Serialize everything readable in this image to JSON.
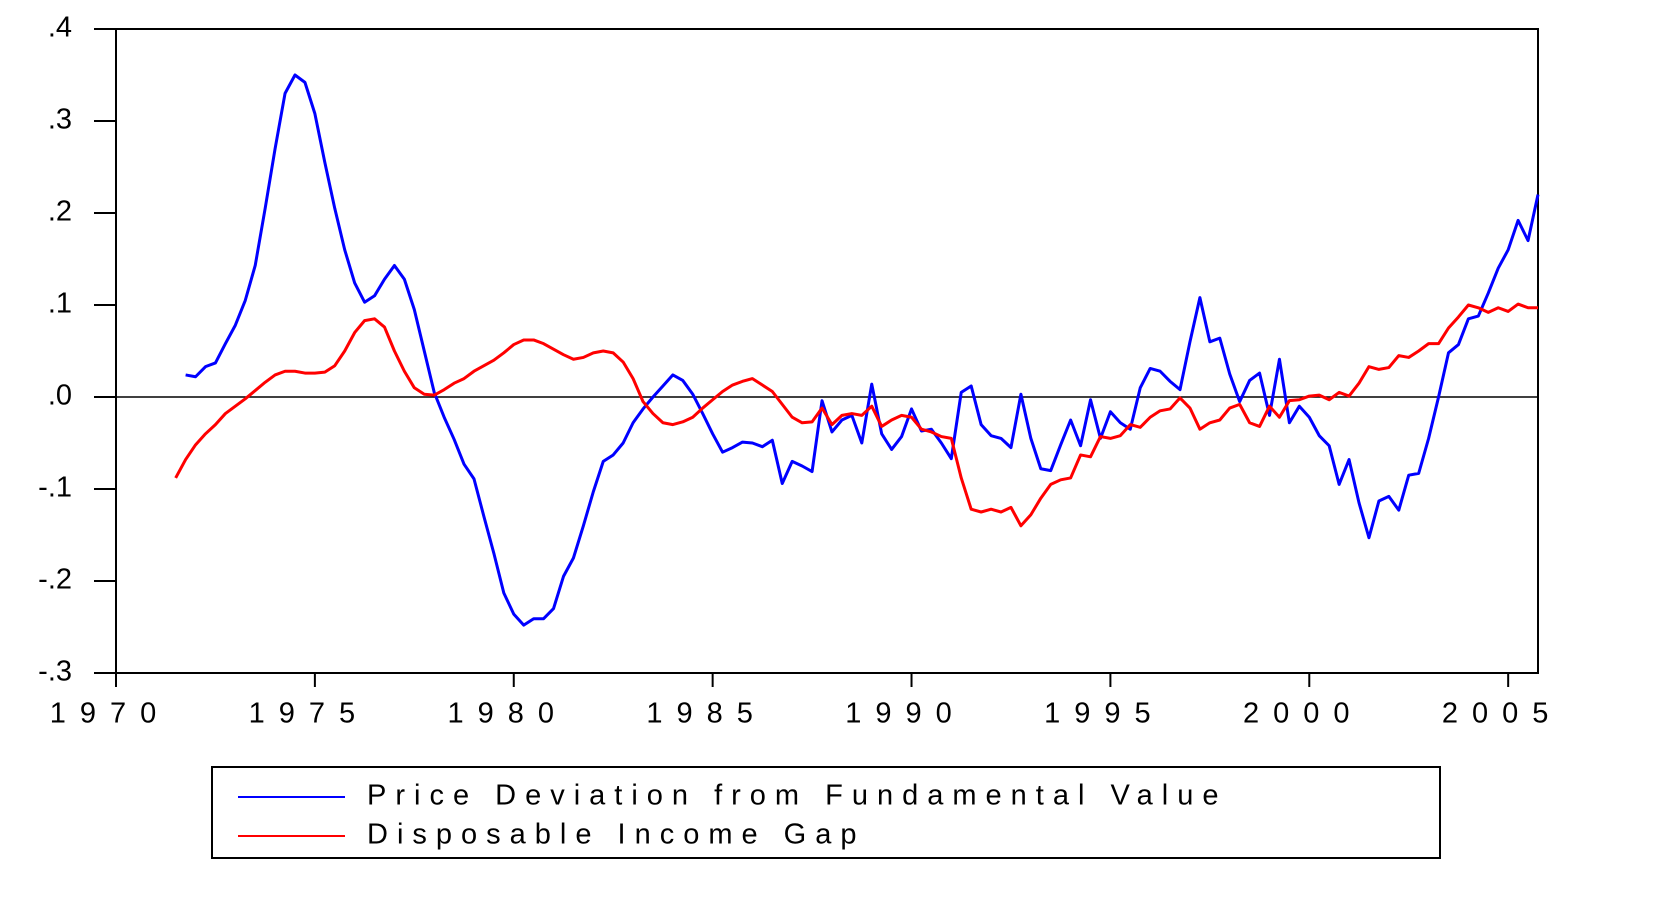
{
  "chart_data": {
    "type": "line",
    "x": [
      1971.5,
      1971.75,
      1972,
      1972.25,
      1972.5,
      1972.75,
      1973,
      1973.25,
      1973.5,
      1973.75,
      1974,
      1974.25,
      1974.5,
      1974.75,
      1975,
      1975.25,
      1975.5,
      1975.75,
      1976,
      1976.25,
      1976.5,
      1976.75,
      1977,
      1977.25,
      1977.5,
      1977.75,
      1978,
      1978.25,
      1978.5,
      1978.75,
      1979,
      1979.25,
      1979.5,
      1979.75,
      1980,
      1980.25,
      1980.5,
      1980.75,
      1981,
      1981.25,
      1981.5,
      1981.75,
      1982,
      1982.25,
      1982.5,
      1982.75,
      1983,
      1983.25,
      1983.5,
      1983.75,
      1984,
      1984.25,
      1984.5,
      1984.75,
      1985,
      1985.25,
      1985.5,
      1985.75,
      1986,
      1986.25,
      1986.5,
      1986.75,
      1987,
      1987.25,
      1987.5,
      1987.75,
      1988,
      1988.25,
      1988.5,
      1988.75,
      1989,
      1989.25,
      1989.5,
      1989.75,
      1990,
      1990.25,
      1990.5,
      1990.75,
      1991,
      1991.25,
      1991.5,
      1991.75,
      1992,
      1992.25,
      1992.5,
      1992.75,
      1993,
      1993.25,
      1993.5,
      1993.75,
      1994,
      1994.25,
      1994.5,
      1994.75,
      1995,
      1995.25,
      1995.5,
      1995.75,
      1996,
      1996.25,
      1996.5,
      1996.75,
      1997,
      1997.25,
      1997.5,
      1997.75,
      1998,
      1998.25,
      1998.5,
      1998.75,
      1999,
      1999.25,
      1999.5,
      1999.75,
      2000,
      2000.25,
      2000.5,
      2000.75,
      2001,
      2001.25,
      2001.5,
      2001.75,
      2002,
      2002.25,
      2002.5,
      2002.75,
      2003,
      2003.25,
      2003.5,
      2003.75,
      2004,
      2004.25,
      2004.5,
      2004.75,
      2005,
      2005.25,
      2005.5,
      2005.75
    ],
    "series": [
      {
        "name": "Price Deviation from Fundamental Value",
        "color": "#0000ff",
        "values": [
          null,
          0.024,
          0.022,
          0.033,
          0.037,
          0.058,
          0.078,
          0.105,
          0.143,
          0.205,
          0.27,
          0.33,
          0.35,
          0.342,
          0.308,
          0.255,
          0.205,
          0.16,
          0.124,
          0.103,
          0.11,
          0.128,
          0.143,
          0.128,
          0.095,
          0.05,
          0.005,
          -0.022,
          -0.046,
          -0.073,
          -0.089,
          -0.13,
          -0.17,
          -0.213,
          -0.236,
          -0.248,
          -0.241,
          -0.241,
          -0.23,
          -0.195,
          -0.175,
          -0.14,
          -0.103,
          -0.07,
          -0.063,
          -0.05,
          -0.028,
          -0.013,
          0,
          0.012,
          0.024,
          0.018,
          0.003,
          -0.018,
          -0.04,
          -0.06,
          -0.055,
          -0.049,
          -0.05,
          -0.054,
          -0.047,
          -0.094,
          -0.07,
          -0.075,
          -0.081,
          -0.004,
          -0.038,
          -0.025,
          -0.02,
          -0.05,
          0.014,
          -0.04,
          -0.057,
          -0.043,
          -0.013,
          -0.037,
          -0.035,
          -0.05,
          -0.067,
          0.005,
          0.012,
          -0.03,
          -0.042,
          -0.045,
          -0.055,
          0.003,
          -0.045,
          -0.078,
          -0.08,
          -0.052,
          -0.025,
          -0.053,
          -0.003,
          -0.045,
          -0.016,
          -0.028,
          -0.035,
          0.01,
          0.031,
          0.028,
          0.017,
          0.008,
          0.06,
          0.108,
          0.06,
          0.064,
          0.025,
          -0.005,
          0.018,
          0.026,
          -0.02,
          0.041,
          -0.028,
          -0.01,
          -0.022,
          -0.042,
          -0.053,
          -0.095,
          -0.068,
          -0.115,
          -0.153,
          -0.113,
          -0.108,
          -0.123,
          -0.085,
          -0.083,
          -0.045,
          0,
          0.048,
          0.057,
          0.085,
          0.088,
          0.113,
          0.14,
          0.16,
          0.192,
          0.17,
          0.22
        ]
      },
      {
        "name": "Disposable Income Gap",
        "color": "#ff0000",
        "values": [
          -0.088,
          -0.068,
          -0.052,
          -0.04,
          -0.03,
          -0.018,
          -0.01,
          -0.002,
          0.007,
          0.016,
          0.024,
          0.028,
          0.028,
          0.026,
          0.026,
          0.027,
          0.034,
          0.05,
          0.07,
          0.083,
          0.085,
          0.076,
          0.05,
          0.028,
          0.01,
          0.003,
          0.002,
          0.008,
          0.015,
          0.02,
          0.028,
          0.034,
          0.04,
          0.048,
          0.057,
          0.062,
          0.062,
          0.058,
          0.052,
          0.046,
          0.041,
          0.043,
          0.048,
          0.05,
          0.048,
          0.038,
          0.02,
          -0.005,
          -0.018,
          -0.028,
          -0.03,
          -0.027,
          -0.022,
          -0.012,
          -0.003,
          0.006,
          0.013,
          0.017,
          0.02,
          0.013,
          0.006,
          -0.008,
          -0.022,
          -0.028,
          -0.027,
          -0.012,
          -0.03,
          -0.02,
          -0.018,
          -0.02,
          -0.01,
          -0.032,
          -0.025,
          -0.02,
          -0.022,
          -0.035,
          -0.038,
          -0.043,
          -0.045,
          -0.088,
          -0.122,
          -0.125,
          -0.122,
          -0.125,
          -0.12,
          -0.14,
          -0.128,
          -0.11,
          -0.095,
          -0.09,
          -0.088,
          -0.063,
          -0.065,
          -0.043,
          -0.045,
          -0.042,
          -0.03,
          -0.033,
          -0.022,
          -0.015,
          -0.013,
          -0.001,
          -0.012,
          -0.035,
          -0.028,
          -0.025,
          -0.012,
          -0.008,
          -0.028,
          -0.032,
          -0.01,
          -0.022,
          -0.004,
          -0.003,
          0.001,
          0.002,
          -0.003,
          0.005,
          0.001,
          0.015,
          0.033,
          0.03,
          0.032,
          0.045,
          0.043,
          0.05,
          0.058,
          0.058,
          0.075,
          0.087,
          0.1,
          0.097,
          0.092,
          0.097,
          0.093,
          0.101,
          0.097,
          0.097
        ]
      }
    ],
    "xlim": [
      1970,
      2005.75
    ],
    "xticks": [
      1970,
      1975,
      1980,
      1985,
      1990,
      1995,
      2000,
      2005
    ],
    "ylim": [
      -0.3,
      0.4
    ],
    "yticks": [
      {
        "value": -0.3,
        "label": "-.3"
      },
      {
        "value": -0.2,
        "label": "-.2"
      },
      {
        "value": -0.1,
        "label": "-.1"
      },
      {
        "value": 0,
        "label": ".0"
      },
      {
        "value": 0.1,
        "label": ".1"
      },
      {
        "value": 0.2,
        "label": ".2"
      },
      {
        "value": 0.3,
        "label": ".3"
      },
      {
        "value": 0.4,
        "label": ".4"
      }
    ],
    "reference_line": 0,
    "grid": false,
    "legend": "bottom"
  }
}
